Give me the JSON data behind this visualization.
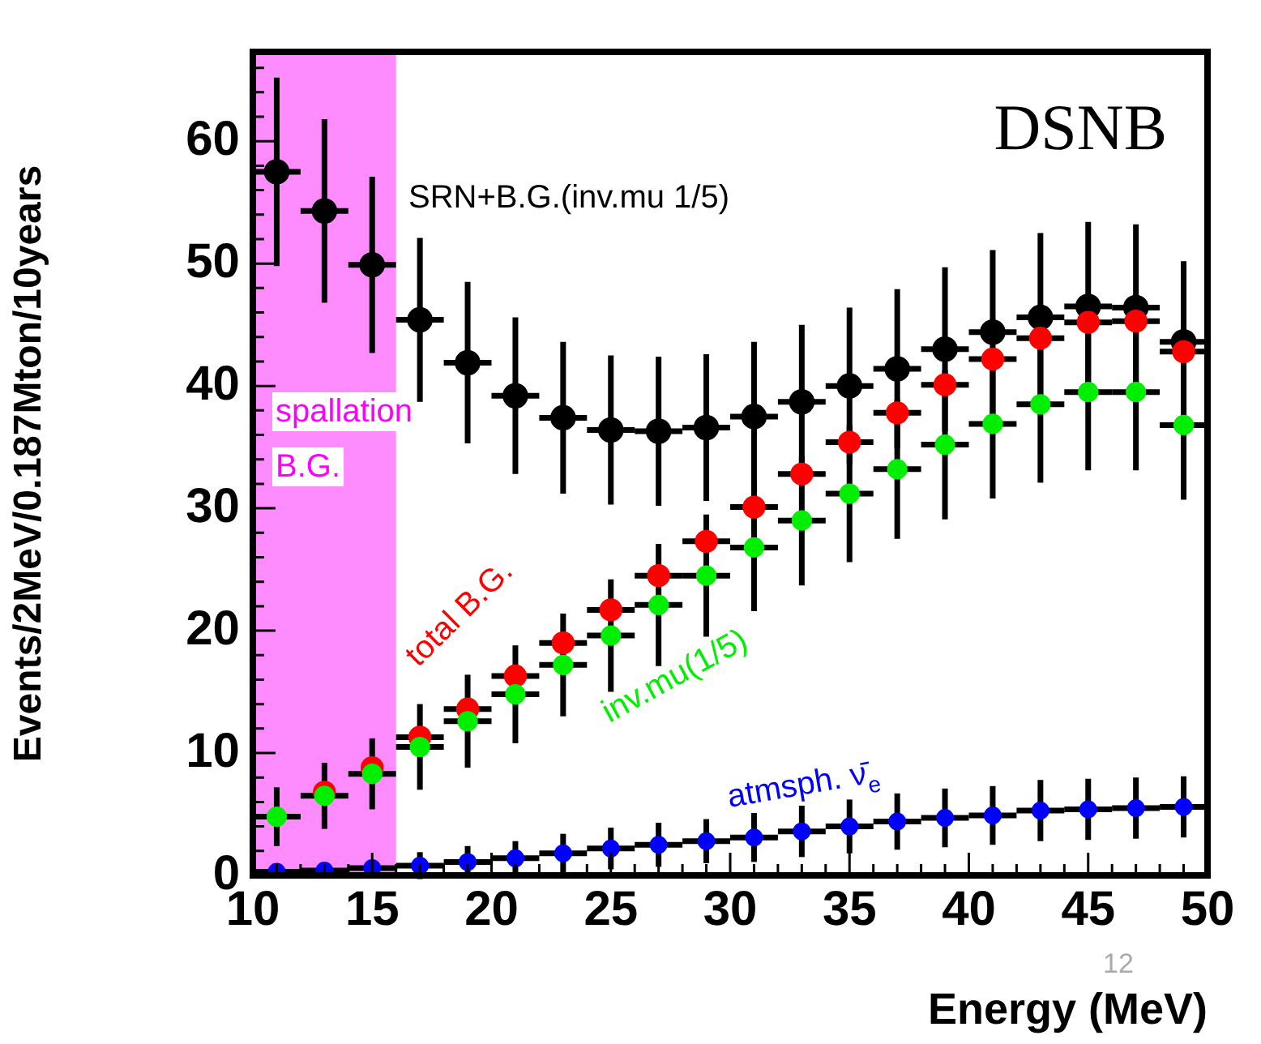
{
  "chart_data": {
    "type": "scatter",
    "xlabel": "Energy (MeV)",
    "ylabel": "Events/2MeV/0.187Mton/10years",
    "x": [
      11,
      13,
      15,
      17,
      19,
      21,
      23,
      25,
      27,
      29,
      31,
      33,
      35,
      37,
      39,
      41,
      43,
      45,
      47,
      49
    ],
    "xlim": [
      10,
      50
    ],
    "xticks": [
      10,
      15,
      20,
      25,
      30,
      35,
      40,
      45,
      50
    ],
    "ylim": [
      0,
      67.3
    ],
    "yticks": [
      0,
      10,
      20,
      30,
      40,
      50,
      60
    ],
    "grid": false,
    "legend": false,
    "marker": "circle",
    "series": [
      {
        "name": "SRN+B.G.(inv.mu 1/5)",
        "color": "#000000",
        "values": [
          57.5,
          54.3,
          49.9,
          45.4,
          41.9,
          39.2,
          37.4,
          36.4,
          36.3,
          36.6,
          37.5,
          38.7,
          40,
          41.4,
          43,
          44.4,
          45.6,
          46.5,
          46.4,
          43.6
        ],
        "errors": [
          7.7,
          7.5,
          7.2,
          6.7,
          6.6,
          6.4,
          6.2,
          6.1,
          6.1,
          6,
          6.1,
          6.3,
          6.4,
          6.5,
          6.7,
          6.7,
          6.9,
          6.9,
          6.8,
          6.6
        ],
        "xerrors": [
          1,
          1,
          1,
          1,
          1,
          1,
          1,
          1,
          1,
          1,
          1,
          1,
          1,
          1,
          1,
          1,
          1,
          1,
          1,
          1
        ]
      },
      {
        "name": "total B.G.",
        "color": "#ff0000",
        "values": [
          null,
          6.8,
          8.8,
          11.3,
          13.6,
          16.3,
          19,
          21.7,
          24.5,
          27.3,
          30.1,
          32.8,
          35.4,
          37.8,
          40.1,
          42.2,
          43.9,
          45.2,
          45.3,
          42.8
        ],
        "xerrors": [
          null,
          null,
          null,
          1,
          1,
          1,
          1,
          1,
          1,
          1,
          1,
          1,
          1,
          1,
          1,
          1,
          1,
          1,
          1,
          1
        ]
      },
      {
        "name": "inv.mu(1/5)",
        "color": "#00ee00",
        "values": [
          4.8,
          6.5,
          8.3,
          10.5,
          12.6,
          14.8,
          17.2,
          19.6,
          22.1,
          24.5,
          26.8,
          29,
          31.2,
          33.2,
          35.2,
          36.9,
          38.5,
          39.5,
          39.5,
          36.8
        ],
        "errors": [
          2.4,
          2.7,
          2.9,
          3.5,
          3.8,
          4,
          4.2,
          4.6,
          5,
          5,
          5.2,
          5.3,
          5.6,
          5.7,
          6.1,
          6.1,
          6.4,
          6.4,
          6.4,
          6.1
        ],
        "xerrors": [
          1,
          1,
          1,
          1,
          1,
          1,
          1,
          1,
          1,
          1,
          1,
          1,
          1,
          1,
          1,
          1,
          1,
          1,
          1,
          1
        ]
      },
      {
        "name": "atmsph. ν̄$_{e}$",
        "color": "#0000ff",
        "values": [
          0.3,
          0.4,
          0.6,
          0.8,
          1.1,
          1.4,
          1.8,
          2.2,
          2.5,
          2.8,
          3.1,
          3.6,
          4,
          4.4,
          4.7,
          4.9,
          5.3,
          5.4,
          5.5,
          5.6
        ],
        "errors": [
          null,
          null,
          null,
          1.1,
          1.3,
          1.4,
          1.6,
          1.7,
          1.8,
          1.8,
          2,
          2.1,
          2.2,
          2.3,
          2.4,
          2.4,
          2.5,
          2.5,
          2.5,
          2.5
        ],
        "xerrors": [
          1,
          1,
          1,
          1,
          1,
          1,
          1,
          1,
          1,
          1,
          1,
          1,
          1,
          1,
          1,
          1,
          1,
          1,
          1,
          1
        ]
      }
    ],
    "bands": [
      {
        "axis": "x",
        "from": 10,
        "to": 16,
        "label": "spallation B.G.",
        "color": "#ff00ff"
      }
    ],
    "annotations": [
      "DSNB",
      "12"
    ]
  }
}
